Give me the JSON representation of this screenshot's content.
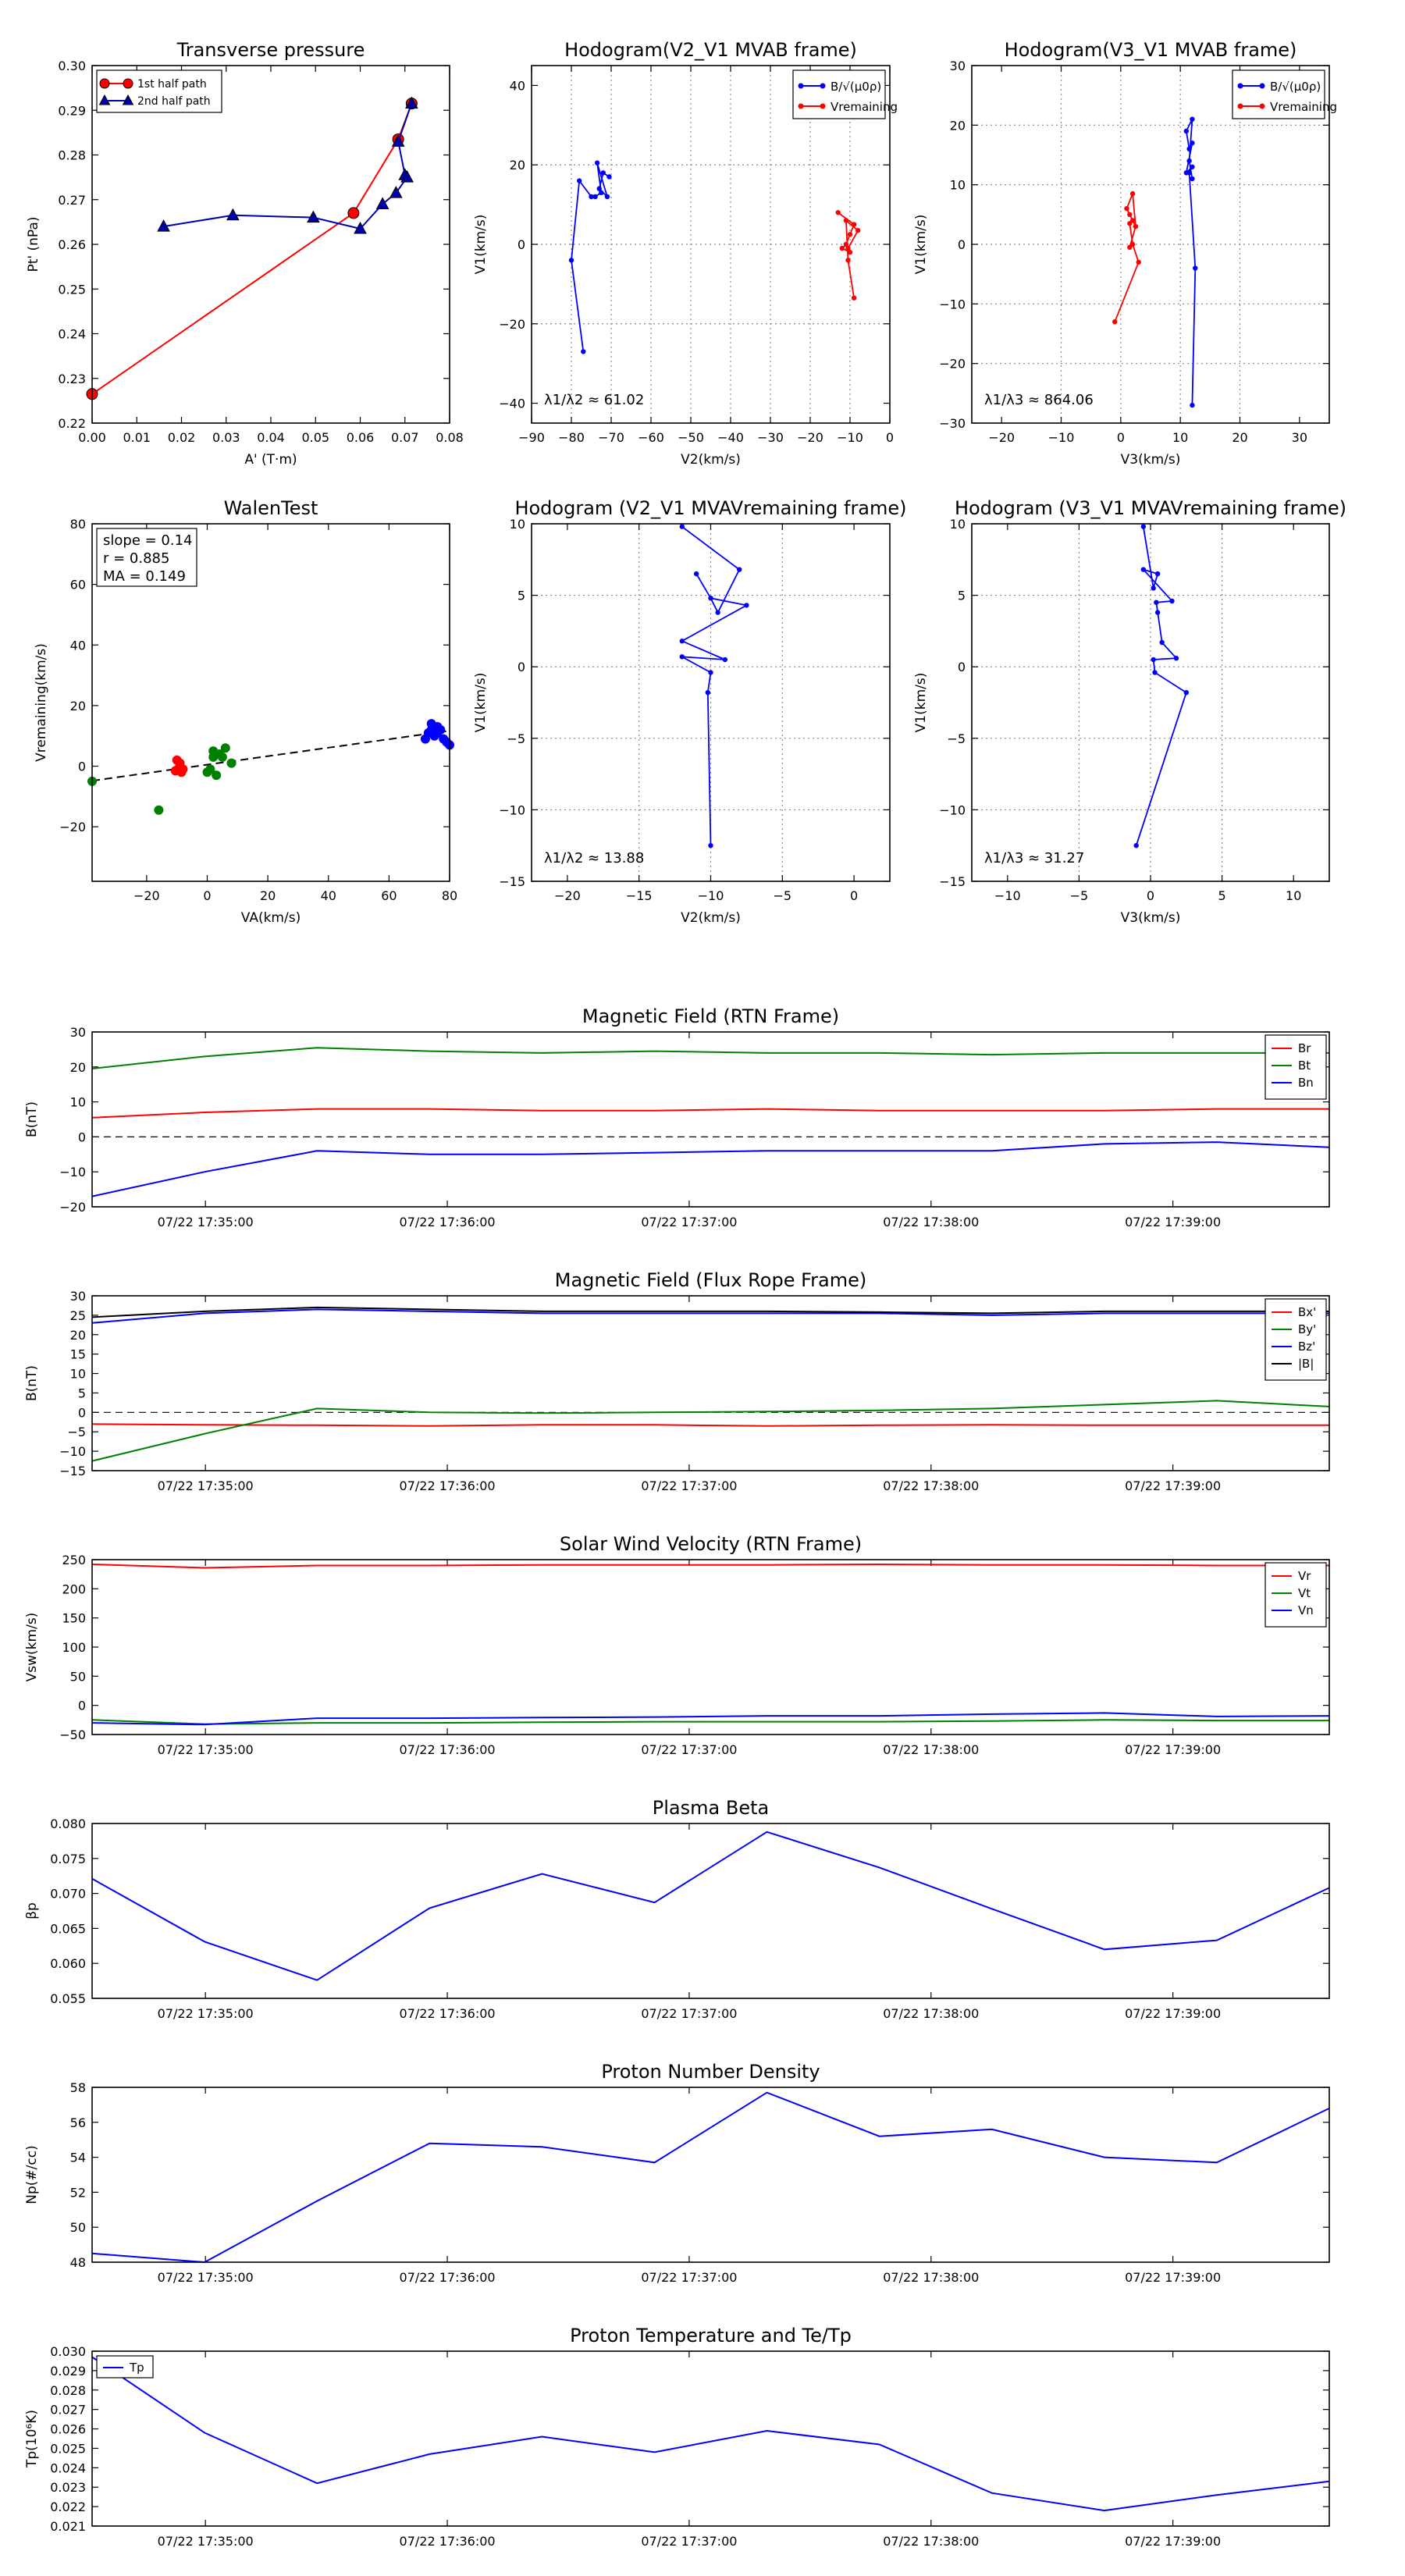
{
  "figure": {
    "background": "#ffffff",
    "grid_color": "#8a8a8a"
  },
  "chart_data": [
    {
      "id": "pt",
      "type": "line",
      "title": "Transverse pressure",
      "xlabel": "A' (T·m)",
      "ylabel": "Pt' (nPa)",
      "xlim": [
        0.0,
        0.08
      ],
      "ylim": [
        0.22,
        0.3
      ],
      "xticks": [
        0.0,
        0.01,
        0.02,
        0.03,
        0.04,
        0.05,
        0.06,
        0.07,
        0.08
      ],
      "xtick_labels": [
        "0.00",
        "0.01",
        "0.02",
        "0.03",
        "0.04",
        "0.05",
        "0.06",
        "0.07",
        "0.08"
      ],
      "yticks": [
        0.22,
        0.23,
        0.24,
        0.25,
        0.26,
        0.27,
        0.28,
        0.29,
        0.3
      ],
      "ytick_labels": [
        "0.22",
        "0.23",
        "0.24",
        "0.25",
        "0.26",
        "0.27",
        "0.28",
        "0.29",
        "0.30"
      ],
      "grid": false,
      "legend": "top-left",
      "series": [
        {
          "name": "1st half path",
          "color": "#ff0000",
          "marker": "circle",
          "x": [
            0.0,
            0.0585,
            0.0685,
            0.0715
          ],
          "y": [
            0.2265,
            0.267,
            0.2835,
            0.2915
          ]
        },
        {
          "name": "2nd half path",
          "color": "#0000aa",
          "marker": "triangle",
          "x": [
            0.0715,
            0.0685,
            0.07,
            0.0705,
            0.068,
            0.065,
            0.06,
            0.0495,
            0.0315,
            0.016
          ],
          "y": [
            0.2915,
            0.283,
            0.2755,
            0.275,
            0.2715,
            0.269,
            0.2635,
            0.266,
            0.2665,
            0.264
          ]
        }
      ]
    },
    {
      "id": "h1",
      "type": "line",
      "title": "Hodogram(V2_V1 MVAB frame)",
      "xlabel": "V2(km/s)",
      "ylabel": "V1(km/s)",
      "xlim": [
        -90,
        0
      ],
      "ylim": [
        -45,
        45
      ],
      "xticks": [
        -90,
        -80,
        -70,
        -60,
        -50,
        -40,
        -30,
        -20,
        -10,
        0
      ],
      "xtick_labels": [
        "−90",
        "−80",
        "−70",
        "−60",
        "−50",
        "−40",
        "−30",
        "−20",
        "−10",
        "0"
      ],
      "yticks": [
        -40,
        -20,
        0,
        20,
        40
      ],
      "ytick_labels": [
        "−40",
        "−20",
        "0",
        "20",
        "40"
      ],
      "grid": true,
      "legend": "top-right",
      "annotation": "λ1/λ2 ≈ 61.02",
      "series": [
        {
          "name": "B/√(μ0ρ)",
          "color": "#0000ff",
          "marker": "dot",
          "x": [
            -77,
            -80,
            -78,
            -75,
            -74,
            -72.5,
            -73.5,
            -71,
            -73,
            -72,
            -70.5
          ],
          "y": [
            -27,
            -4,
            16,
            12,
            12,
            13,
            20.5,
            12,
            14,
            18,
            17
          ]
        },
        {
          "name": "Vremaining",
          "color": "#ff0000",
          "marker": "dot",
          "x": [
            -13,
            -9,
            -10,
            -11,
            -12,
            -10,
            -10.5,
            -8,
            -11,
            -10.5,
            -9
          ],
          "y": [
            8,
            5,
            2.5,
            0,
            -1,
            -2,
            -1,
            3.5,
            6,
            -4,
            -13.5
          ]
        }
      ]
    },
    {
      "id": "h2",
      "type": "line",
      "title": "Hodogram(V3_V1 MVAB frame)",
      "xlabel": "V3(km/s)",
      "ylabel": "V1(km/s)",
      "xlim": [
        -25,
        35
      ],
      "ylim": [
        -30,
        30
      ],
      "xticks": [
        -20,
        -10,
        0,
        10,
        20,
        30
      ],
      "xtick_labels": [
        "−20",
        "−10",
        "0",
        "10",
        "20",
        "30"
      ],
      "yticks": [
        -30,
        -20,
        -10,
        0,
        10,
        20,
        30
      ],
      "ytick_labels": [
        "−30",
        "−20",
        "−10",
        "0",
        "10",
        "20",
        "30"
      ],
      "grid": true,
      "legend": "top-right",
      "annotation": "λ1/λ3 ≈ 864.06",
      "series": [
        {
          "name": "B/√(μ0ρ)",
          "color": "#0000ff",
          "marker": "dot",
          "x": [
            12,
            12.5,
            11.5,
            12,
            11,
            12,
            11.5,
            11,
            12,
            11.5,
            12
          ],
          "y": [
            -27,
            -4,
            12,
            13,
            12,
            17,
            16,
            19,
            21,
            14,
            11
          ]
        },
        {
          "name": "Vremaining",
          "color": "#ff0000",
          "marker": "dot",
          "x": [
            -1,
            3,
            2,
            1.5,
            2,
            1,
            2,
            2.5,
            1.5,
            2.5,
            1.5
          ],
          "y": [
            -13,
            -3,
            0,
            3.5,
            4,
            6,
            8.5,
            3,
            5,
            3,
            -0.5
          ]
        }
      ]
    },
    {
      "id": "walen",
      "type": "scatter",
      "title": "WalenTest",
      "xlabel": "VA(km/s)",
      "ylabel": "Vremaining(km/s)",
      "xlim": [
        -38,
        80
      ],
      "ylim": [
        -38,
        80
      ],
      "xticks": [
        -20,
        0,
        20,
        40,
        60,
        80
      ],
      "xtick_labels": [
        "−20",
        "0",
        "20",
        "40",
        "60",
        "80"
      ],
      "yticks": [
        -20,
        0,
        20,
        40,
        60,
        80
      ],
      "ytick_labels": [
        "−20",
        "0",
        "20",
        "40",
        "60",
        "80"
      ],
      "grid": false,
      "stats": [
        "slope = 0.14",
        "r = 0.885",
        "MA = 0.149"
      ],
      "fit": {
        "slope": 0.14,
        "intercept": 0.5,
        "x": [
          -38,
          80
        ]
      },
      "series": [
        {
          "name": "red",
          "color": "#ff0000",
          "x": [
            -10,
            -9,
            -9.5,
            -8.5,
            -10.5,
            -9,
            -8
          ],
          "y": [
            2,
            0,
            -1,
            -2,
            -1.5,
            1,
            -1
          ]
        },
        {
          "name": "green",
          "color": "#008000",
          "x": [
            -16,
            -38,
            0,
            2,
            4,
            6,
            8,
            1,
            3,
            5,
            2
          ],
          "y": [
            -14.5,
            -5,
            -2,
            3,
            4,
            6,
            1,
            -1,
            -3,
            3,
            5
          ]
        },
        {
          "name": "blue",
          "color": "#0000ff",
          "x": [
            72,
            74,
            75,
            76,
            77,
            78,
            79,
            80,
            73,
            74,
            76
          ],
          "y": [
            9,
            14,
            10,
            11,
            12,
            9,
            8,
            7,
            11,
            12,
            13
          ]
        }
      ]
    },
    {
      "id": "h3",
      "type": "line",
      "title": "Hodogram (V2_V1 MVAVremaining frame)",
      "xlabel": "V2(km/s)",
      "ylabel": "V1(km/s)",
      "xlim": [
        -22.5,
        2.5
      ],
      "ylim": [
        -15,
        10
      ],
      "xticks": [
        -20,
        -15,
        -10,
        -5,
        0
      ],
      "xtick_labels": [
        "−20",
        "−15",
        "−10",
        "−5",
        "0"
      ],
      "yticks": [
        -15,
        -10,
        -5,
        0,
        5,
        10
      ],
      "ytick_labels": [
        "−15",
        "−10",
        "−5",
        "0",
        "5",
        "10"
      ],
      "grid": true,
      "annotation": "λ1/λ2 ≈ 13.88",
      "series": [
        {
          "name": "series",
          "color": "#0000ff",
          "marker": "dot",
          "x": [
            -10,
            -10.2,
            -10,
            -12,
            -9,
            -12,
            -7.5,
            -10,
            -11,
            -10,
            -9.5,
            -8,
            -12
          ],
          "y": [
            -12.5,
            -1.8,
            -0.4,
            0.7,
            0.5,
            1.8,
            4.3,
            4.8,
            6.5,
            4.8,
            3.8,
            6.8,
            9.8
          ]
        }
      ]
    },
    {
      "id": "h4",
      "type": "line",
      "title": "Hodogram (V3_V1 MVAVremaining frame)",
      "xlabel": "V3(km/s)",
      "ylabel": "V1(km/s)",
      "xlim": [
        -12.5,
        12.5
      ],
      "ylim": [
        -15,
        10
      ],
      "xticks": [
        -10,
        -5,
        0,
        5,
        10
      ],
      "xtick_labels": [
        "−10",
        "−5",
        "0",
        "5",
        "10"
      ],
      "yticks": [
        -15,
        -10,
        -5,
        0,
        5,
        10
      ],
      "ytick_labels": [
        "−15",
        "−10",
        "−5",
        "0",
        "5",
        "10"
      ],
      "grid": true,
      "annotation": "λ1/λ3 ≈ 31.27",
      "series": [
        {
          "name": "series",
          "color": "#0000ff",
          "marker": "dot",
          "x": [
            -1,
            2.5,
            0.3,
            0.2,
            1.8,
            0.8,
            0.5,
            0.4,
            1.5,
            -0.5,
            0.5,
            0.2,
            -0.5
          ],
          "y": [
            -12.5,
            -1.8,
            -0.4,
            0.5,
            0.6,
            1.7,
            3.8,
            4.5,
            4.6,
            6.8,
            6.5,
            5.5,
            9.8
          ]
        }
      ]
    },
    {
      "id": "mag_rtn",
      "type": "line",
      "title": "Magnetic Field (RTN Frame)",
      "ylabel": "B(nT)",
      "ylim": [
        -20,
        30
      ],
      "yticks": [
        -20,
        -10,
        0,
        10,
        20,
        30
      ],
      "ytick_labels": [
        "−20",
        "−10",
        "0",
        "10",
        "20",
        "30"
      ],
      "xtick_labels": [
        "07/22 17:35:00",
        "07/22 17:36:00",
        "07/22 17:37:00",
        "07/22 17:38:00",
        "07/22 17:39:00"
      ],
      "zero_line": true,
      "legend": "top-right",
      "series": [
        {
          "name": "Br",
          "color": "#ff0000",
          "values": [
            5.5,
            7,
            8,
            8,
            7.5,
            7.5,
            8,
            7.5,
            7.5,
            7.5,
            8,
            8
          ]
        },
        {
          "name": "Bt",
          "color": "#008000",
          "values": [
            19.5,
            23,
            25.5,
            24.5,
            24,
            24.5,
            24,
            24,
            23.5,
            24,
            24,
            24
          ]
        },
        {
          "name": "Bn",
          "color": "#0000ff",
          "values": [
            -17,
            -10,
            -4,
            -5,
            -5,
            -4.5,
            -4,
            -4,
            -4,
            -2,
            -1.5,
            -3
          ]
        }
      ]
    },
    {
      "id": "mag_fr",
      "type": "line",
      "title": "Magnetic Field (Flux Rope Frame)",
      "ylabel": "B(nT)",
      "ylim": [
        -15,
        30
      ],
      "yticks": [
        -15,
        -10,
        -5,
        0,
        5,
        10,
        15,
        20,
        25,
        30
      ],
      "ytick_labels": [
        "−15",
        "−10",
        "−5",
        "0",
        "5",
        "10",
        "15",
        "20",
        "25",
        "30"
      ],
      "xtick_labels": [
        "07/22 17:35:00",
        "07/22 17:36:00",
        "07/22 17:37:00",
        "07/22 17:38:00",
        "07/22 17:39:00"
      ],
      "zero_line": true,
      "legend": "top-right",
      "series": [
        {
          "name": "Bx'",
          "color": "#ff0000",
          "values": [
            -3,
            -3.2,
            -3.3,
            -3.5,
            -3.2,
            -3.2,
            -3.5,
            -3.3,
            -3.2,
            -3.3,
            -3.3,
            -3.3
          ]
        },
        {
          "name": "By'",
          "color": "#008000",
          "values": [
            -12.5,
            -5.5,
            1,
            0,
            -0.2,
            0,
            0.2,
            0.5,
            1,
            2,
            3,
            1.5
          ]
        },
        {
          "name": "Bz'",
          "color": "#0000ff",
          "values": [
            23,
            25.5,
            26.5,
            26,
            25.5,
            25.5,
            25.5,
            25.5,
            25,
            25.5,
            25.5,
            25.5
          ]
        },
        {
          "name": "|B|",
          "color": "#000000",
          "values": [
            24.5,
            26,
            27,
            26.5,
            26,
            26,
            26,
            25.8,
            25.5,
            26,
            26,
            26
          ]
        }
      ]
    },
    {
      "id": "vsw",
      "type": "line",
      "title": "Solar Wind Velocity (RTN Frame)",
      "ylabel": "Vsw(km/s)",
      "ylim": [
        -50,
        250
      ],
      "yticks": [
        -50,
        0,
        50,
        100,
        150,
        200,
        250
      ],
      "ytick_labels": [
        "−50",
        "0",
        "50",
        "100",
        "150",
        "200",
        "250"
      ],
      "xtick_labels": [
        "07/22 17:35:00",
        "07/22 17:36:00",
        "07/22 17:37:00",
        "07/22 17:38:00",
        "07/22 17:39:00"
      ],
      "legend": "top-right",
      "series": [
        {
          "name": "Vr",
          "color": "#ff0000",
          "values": [
            242,
            236,
            240,
            240,
            241,
            241,
            241,
            242,
            241,
            241,
            240,
            240
          ]
        },
        {
          "name": "Vt",
          "color": "#008000",
          "values": [
            -25,
            -32,
            -30,
            -30,
            -29,
            -28,
            -28,
            -28,
            -27,
            -25,
            -26,
            -26
          ]
        },
        {
          "name": "Vn",
          "color": "#0000ff",
          "values": [
            -30,
            -33,
            -22,
            -22,
            -21,
            -20,
            -18,
            -18,
            -15,
            -13,
            -19,
            -18
          ]
        }
      ]
    },
    {
      "id": "beta",
      "type": "line",
      "title": "Plasma Beta",
      "ylabel": "βp",
      "ylim": [
        0.055,
        0.08
      ],
      "yticks": [
        0.055,
        0.06,
        0.065,
        0.07,
        0.075,
        0.08
      ],
      "ytick_labels": [
        "0.055",
        "0.060",
        "0.065",
        "0.070",
        "0.075",
        "0.080"
      ],
      "xtick_labels": [
        "07/22 17:35:00",
        "07/22 17:36:00",
        "07/22 17:37:00",
        "07/22 17:38:00",
        "07/22 17:39:00"
      ],
      "series": [
        {
          "name": "beta",
          "color": "#0000ff",
          "values": [
            0.0721,
            0.0631,
            0.0576,
            0.0679,
            0.0728,
            0.0687,
            0.0788,
            0.0737,
            0.0678,
            0.062,
            0.0633,
            0.0708
          ]
        }
      ]
    },
    {
      "id": "np",
      "type": "line",
      "title": "Proton Number Density",
      "ylabel": "Np(#/cc)",
      "ylim": [
        48,
        58
      ],
      "yticks": [
        48,
        50,
        52,
        54,
        56,
        58
      ],
      "ytick_labels": [
        "48",
        "50",
        "52",
        "54",
        "56",
        "58"
      ],
      "xtick_labels": [
        "07/22 17:35:00",
        "07/22 17:36:00",
        "07/22 17:37:00",
        "07/22 17:38:00",
        "07/22 17:39:00"
      ],
      "series": [
        {
          "name": "Np",
          "color": "#0000ff",
          "values": [
            48.5,
            48.0,
            51.5,
            54.8,
            54.6,
            53.7,
            57.7,
            55.2,
            55.6,
            54.0,
            53.7,
            56.8
          ]
        }
      ]
    },
    {
      "id": "tp",
      "type": "line",
      "title": "Proton Temperature and Te/Tp",
      "ylabel": "Tp(10⁶K)",
      "ylim": [
        0.021,
        0.03
      ],
      "yticks": [
        0.021,
        0.022,
        0.023,
        0.024,
        0.025,
        0.026,
        0.027,
        0.028,
        0.029,
        0.03
      ],
      "ytick_labels": [
        "0.021",
        "0.022",
        "0.023",
        "0.024",
        "0.025",
        "0.026",
        "0.027",
        "0.028",
        "0.029",
        "0.030"
      ],
      "xtick_labels": [
        "07/22 17:35:00",
        "07/22 17:36:00",
        "07/22 17:37:00",
        "07/22 17:38:00",
        "07/22 17:39:00"
      ],
      "legend": "top-left",
      "series": [
        {
          "name": "Tp",
          "color": "#0000ff",
          "values": [
            0.0297,
            0.0258,
            0.0232,
            0.0247,
            0.0256,
            0.0248,
            0.0259,
            0.0252,
            0.0227,
            0.0218,
            0.0226,
            0.0233
          ]
        }
      ]
    }
  ]
}
